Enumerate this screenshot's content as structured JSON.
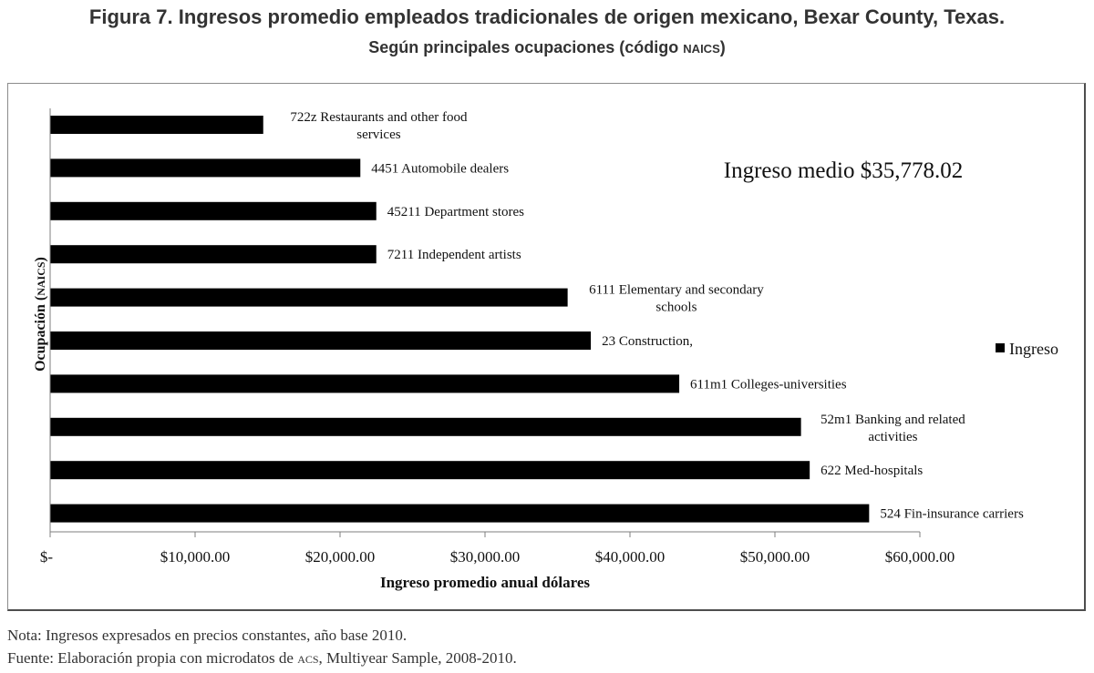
{
  "figure": {
    "title": "Figura 7. Ingresos promedio empleados tradicionales de origen mexicano, Bexar County, Texas.",
    "subtitle_main": "Según principales ocupaciones (código ",
    "subtitle_code": "NAICS",
    "subtitle_end": ")"
  },
  "chart_data": {
    "type": "bar",
    "orientation": "horizontal",
    "categories": [
      "722z Restaurants and other food services",
      "4451 Automobile dealers",
      "45211 Department stores",
      "7211 Independent artists",
      "6111 Elementary and secondary schools",
      "23 Construction,",
      "611m1 Colleges-universities",
      "52m1 Banking and related activities",
      "622 Med-hospitals",
      "524 Fin-insurance carriers"
    ],
    "category_label_lines": [
      [
        "722z Restaurants and other food",
        "services"
      ],
      [
        "4451 Automobile dealers"
      ],
      [
        "45211 Department stores"
      ],
      [
        "7211 Independent artists"
      ],
      [
        "6111 Elementary and secondary",
        "schools"
      ],
      [
        "23 Construction,"
      ],
      [
        "611m1 Colleges-universities"
      ],
      [
        "52m1 Banking and related",
        "activities"
      ],
      [
        "622 Med-hospitals"
      ],
      [
        "524 Fin-insurance carriers"
      ]
    ],
    "series": [
      {
        "name": "Ingreso",
        "values": [
          14700,
          21400,
          22500,
          22500,
          35700,
          37300,
          43400,
          51800,
          52400,
          56500
        ]
      }
    ],
    "xlabel": "Ingreso promedio anual dólares",
    "ylabel_main": "Ocupación (",
    "ylabel_code": "NAICS",
    "ylabel_end": ")",
    "xlim": [
      0,
      60000
    ],
    "xticks": [
      0,
      10000,
      20000,
      30000,
      40000,
      50000,
      60000
    ],
    "xtick_labels": [
      "$-",
      "$10,000.00",
      "$20,000.00",
      "$30,000.00",
      "$40,000.00",
      "$50,000.00",
      "$60,000.00"
    ],
    "annotation": "Ingreso medio $35,778.02",
    "legend": {
      "entries": [
        "Ingreso"
      ],
      "position": "right"
    },
    "grid": false,
    "bar_color": "#000000"
  },
  "notes": {
    "nota": "Nota: Ingresos expresados en precios constantes, año base 2010.",
    "fuente_before": "Fuente: Elaboración propia con microdatos de ",
    "fuente_acs": "ACS",
    "fuente_after": ", Multiyear Sample, 2008-2010."
  }
}
